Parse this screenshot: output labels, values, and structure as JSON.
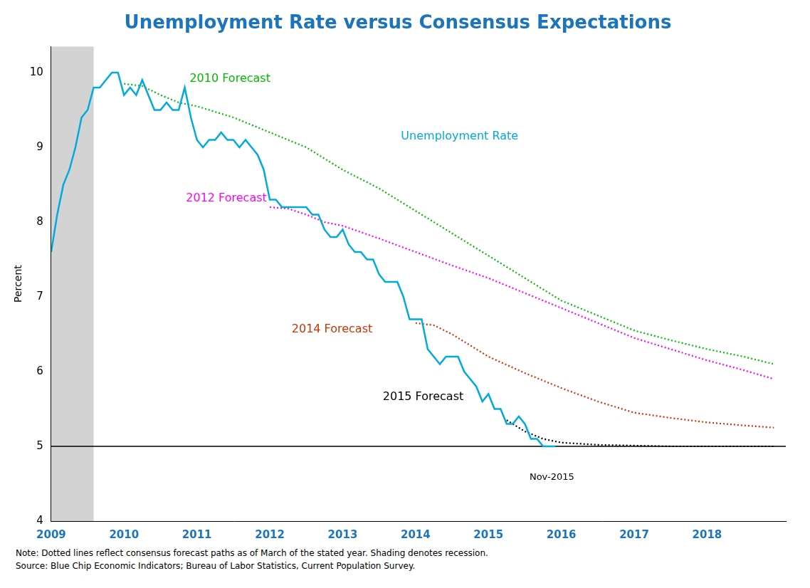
{
  "chart_data": {
    "type": "line",
    "title": "Unemployment Rate versus Consensus Expectations",
    "title_color": "#1c75bc",
    "y_label": "Percent",
    "notes": [
      "Note: Dotted lines reflect consensus forecast paths as of March of the stated year. Shading denotes recession.",
      "Source: Blue Chip Economic Indicators; Bureau of Labor Statistics, Current Population Survey."
    ],
    "xlim": [
      2009.0,
      2019.08
    ],
    "xticks": [
      2009,
      2010,
      2011,
      2012,
      2013,
      2014,
      2015,
      2016,
      2017,
      2018
    ],
    "x_tick_color": "#1c75bc",
    "ylim": [
      4.0,
      10.35
    ],
    "yticks": [
      4,
      5,
      6,
      7,
      8,
      9,
      10
    ],
    "grid": false,
    "shaded_regions": [
      {
        "x0": 2009.0,
        "x1": 2009.583,
        "color": "#d3d3d3"
      }
    ],
    "hlines": [
      {
        "y": 5.0,
        "color": "#000000"
      }
    ],
    "annotations": [
      {
        "text": "Nov-2015",
        "x": 2015.87,
        "y": 4.55
      }
    ],
    "series": [
      {
        "name": "Unemployment Rate",
        "color": "#00aadd",
        "line_style": "solid",
        "label_x": 2013.8,
        "label_y": 9.1,
        "x": [
          2009.0,
          2009.083,
          2009.167,
          2009.25,
          2009.333,
          2009.417,
          2009.5,
          2009.583,
          2009.667,
          2009.75,
          2009.833,
          2009.917,
          2010.0,
          2010.083,
          2010.167,
          2010.25,
          2010.333,
          2010.417,
          2010.5,
          2010.583,
          2010.667,
          2010.75,
          2010.833,
          2010.917,
          2011.0,
          2011.083,
          2011.167,
          2011.25,
          2011.333,
          2011.417,
          2011.5,
          2011.583,
          2011.667,
          2011.75,
          2011.833,
          2011.917,
          2012.0,
          2012.083,
          2012.167,
          2012.25,
          2012.333,
          2012.417,
          2012.5,
          2012.583,
          2012.667,
          2012.75,
          2012.833,
          2012.917,
          2013.0,
          2013.083,
          2013.167,
          2013.25,
          2013.333,
          2013.417,
          2013.5,
          2013.583,
          2013.667,
          2013.75,
          2013.833,
          2013.917,
          2014.0,
          2014.083,
          2014.167,
          2014.25,
          2014.333,
          2014.417,
          2014.5,
          2014.583,
          2014.667,
          2014.75,
          2014.833,
          2014.917,
          2015.0,
          2015.083,
          2015.167,
          2015.25,
          2015.333,
          2015.417,
          2015.5,
          2015.583,
          2015.667,
          2015.75,
          2015.833,
          2015.917
        ],
        "values": [
          7.6,
          8.1,
          8.5,
          8.7,
          9.0,
          9.4,
          9.5,
          9.8,
          9.8,
          9.9,
          10.0,
          10.0,
          9.7,
          9.8,
          9.7,
          9.9,
          9.7,
          9.5,
          9.5,
          9.6,
          9.5,
          9.5,
          9.8,
          9.4,
          9.1,
          9.0,
          9.1,
          9.1,
          9.2,
          9.1,
          9.1,
          9.0,
          9.1,
          9.0,
          8.9,
          8.7,
          8.3,
          8.3,
          8.2,
          8.2,
          8.2,
          8.2,
          8.2,
          8.1,
          8.1,
          7.9,
          7.8,
          7.8,
          7.9,
          7.7,
          7.6,
          7.6,
          7.5,
          7.5,
          7.3,
          7.2,
          7.2,
          7.2,
          7.0,
          6.7,
          6.7,
          6.7,
          6.3,
          6.2,
          6.1,
          6.2,
          6.2,
          6.2,
          6.0,
          5.9,
          5.8,
          5.6,
          5.7,
          5.5,
          5.5,
          5.3,
          5.3,
          5.4,
          5.3,
          5.1,
          5.1,
          5.0,
          5.0,
          5.0
        ]
      },
      {
        "name": "2010 Forecast",
        "color": "#00bb00",
        "line_style": "dotted",
        "label_x": 2010.9,
        "label_y": 9.88,
        "x": [
          2010.0,
          2010.25,
          2010.5,
          2010.75,
          2011.0,
          2011.5,
          2012.0,
          2012.5,
          2013.0,
          2013.5,
          2014.0,
          2014.5,
          2015.0,
          2015.5,
          2016.0,
          2016.5,
          2017.0,
          2017.5,
          2018.0,
          2018.5,
          2018.917
        ],
        "values": [
          9.85,
          9.82,
          9.7,
          9.6,
          9.55,
          9.4,
          9.2,
          9.0,
          8.7,
          8.45,
          8.15,
          7.85,
          7.55,
          7.25,
          6.95,
          6.75,
          6.55,
          6.42,
          6.3,
          6.2,
          6.1
        ]
      },
      {
        "name": "2012 Forecast",
        "color": "#ff00ff",
        "line_style": "dotted",
        "label_x": 2010.85,
        "label_y": 8.28,
        "x": [
          2012.0,
          2012.25,
          2012.5,
          2012.75,
          2013.0,
          2013.5,
          2014.0,
          2014.5,
          2015.0,
          2015.5,
          2016.0,
          2016.5,
          2017.0,
          2017.5,
          2018.0,
          2018.5,
          2018.917
        ],
        "values": [
          8.2,
          8.18,
          8.1,
          8.0,
          7.95,
          7.78,
          7.6,
          7.42,
          7.25,
          7.05,
          6.85,
          6.65,
          6.45,
          6.3,
          6.15,
          6.02,
          5.9
        ]
      },
      {
        "name": "2014 Forecast",
        "color": "#cc3300",
        "line_style": "dotted",
        "label_x": 2012.3,
        "label_y": 6.52,
        "x": [
          2014.0,
          2014.25,
          2014.5,
          2014.75,
          2015.0,
          2015.5,
          2016.0,
          2016.5,
          2017.0,
          2017.5,
          2018.0,
          2018.5,
          2018.917
        ],
        "values": [
          6.65,
          6.62,
          6.5,
          6.35,
          6.2,
          5.98,
          5.78,
          5.6,
          5.45,
          5.38,
          5.32,
          5.28,
          5.25
        ]
      },
      {
        "name": "2015 Forecast",
        "color": "#000000",
        "line_style": "dotted",
        "label_x": 2013.55,
        "label_y": 5.62,
        "x": [
          2015.25,
          2015.5,
          2015.75,
          2016.0,
          2016.5,
          2017.0,
          2017.5,
          2018.0,
          2018.5,
          2018.917
        ],
        "values": [
          5.35,
          5.2,
          5.1,
          5.05,
          5.02,
          5.01,
          5.0,
          5.0,
          5.0,
          5.0
        ]
      }
    ]
  }
}
